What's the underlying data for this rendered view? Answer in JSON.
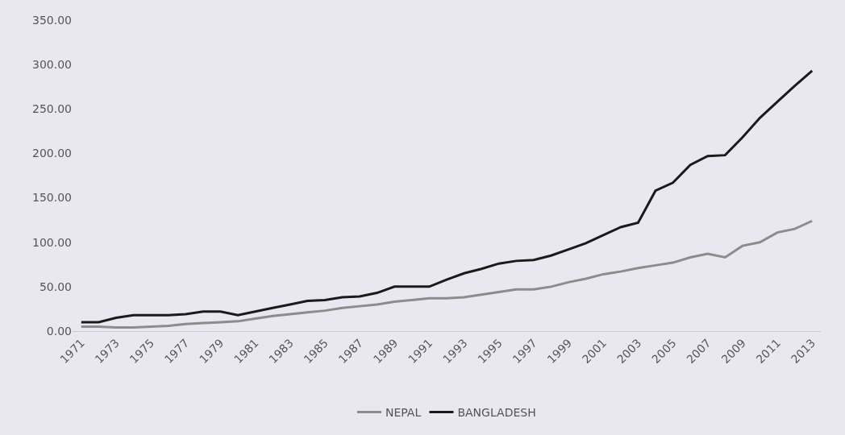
{
  "chart_data": {
    "type": "line",
    "x": [
      1971,
      1972,
      1973,
      1974,
      1975,
      1976,
      1977,
      1978,
      1979,
      1980,
      1981,
      1982,
      1983,
      1984,
      1985,
      1986,
      1987,
      1988,
      1989,
      1990,
      1991,
      1992,
      1993,
      1994,
      1995,
      1996,
      1997,
      1998,
      1999,
      2000,
      2001,
      2002,
      2003,
      2004,
      2005,
      2006,
      2007,
      2008,
      2009,
      2010,
      2011,
      2012,
      2013
    ],
    "series": [
      {
        "name": "NEPAL",
        "color": "#8c8c8c",
        "values": [
          5,
          5,
          4,
          4,
          5,
          6,
          8,
          9,
          10,
          11,
          14,
          17,
          19,
          21,
          23,
          26,
          28,
          30,
          33,
          35,
          37,
          37,
          38,
          41,
          44,
          47,
          47,
          50,
          55,
          59,
          64,
          67,
          71,
          74,
          77,
          83,
          87,
          83,
          96,
          100,
          111,
          115,
          124
        ]
      },
      {
        "name": "BANGLADESH",
        "color": "#1a1a1a",
        "values": [
          10,
          10,
          15,
          18,
          18,
          18,
          19,
          22,
          22,
          18,
          22,
          26,
          30,
          34,
          35,
          38,
          39,
          43,
          50,
          50,
          50,
          58,
          65,
          70,
          76,
          79,
          80,
          85,
          92,
          99,
          108,
          117,
          122,
          158,
          167,
          187,
          197,
          198,
          218,
          240,
          258,
          276,
          293
        ]
      }
    ],
    "xlim": [
      1970.5,
      2013.5
    ],
    "xticks": [
      1971,
      1973,
      1975,
      1977,
      1979,
      1981,
      1983,
      1985,
      1987,
      1989,
      1991,
      1993,
      1995,
      1997,
      1999,
      2001,
      2003,
      2005,
      2007,
      2009,
      2011,
      2013
    ],
    "ylim": [
      0,
      350
    ],
    "yticks": [
      {
        "value": 0,
        "label": "0.00"
      },
      {
        "value": 50,
        "label": "50.00"
      },
      {
        "value": 100,
        "label": "100.00"
      },
      {
        "value": 150,
        "label": "150.00"
      },
      {
        "value": 200,
        "label": "200.00"
      },
      {
        "value": 250,
        "label": "250.00"
      },
      {
        "value": 300,
        "label": "300.00"
      },
      {
        "value": 350,
        "label": "350.00"
      }
    ],
    "grid": false,
    "legend": "bottom",
    "marker": "none",
    "line_style": "solid"
  }
}
